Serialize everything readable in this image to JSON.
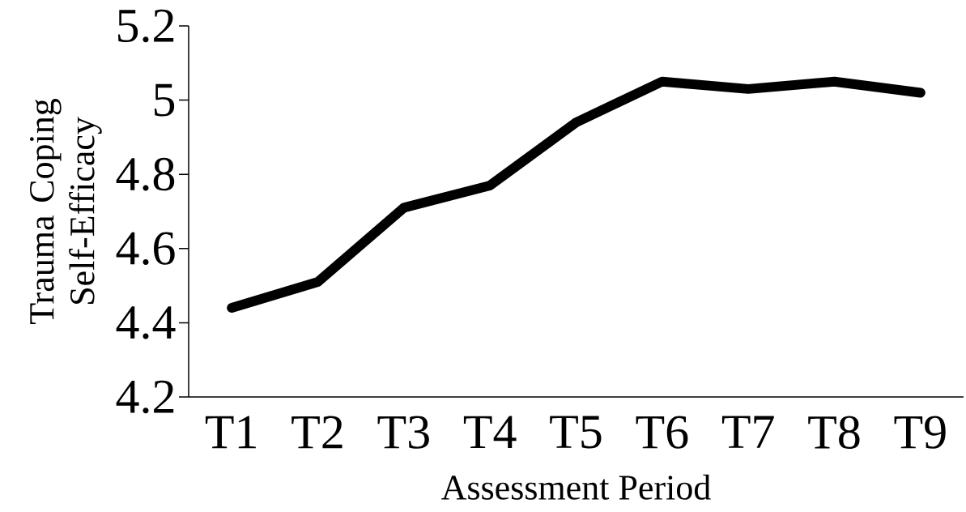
{
  "chart_data": {
    "type": "line",
    "xlabel": "Assessment Period",
    "ylabel": "Trauma Coping Self-Efficacy",
    "categories": [
      "T1",
      "T2",
      "T3",
      "T4",
      "T5",
      "T6",
      "T7",
      "T8",
      "T9"
    ],
    "series": [
      {
        "color": "#000000",
        "values": [
          4.44,
          4.51,
          4.71,
          4.77,
          4.94,
          5.05,
          5.03,
          5.05,
          5.02
        ]
      }
    ],
    "ylim": [
      4.2,
      5.2
    ],
    "yticks": [
      4.2,
      4.4,
      4.6,
      4.8,
      5,
      5.2
    ],
    "grid": false,
    "marker": "none",
    "line_style": "solid"
  }
}
